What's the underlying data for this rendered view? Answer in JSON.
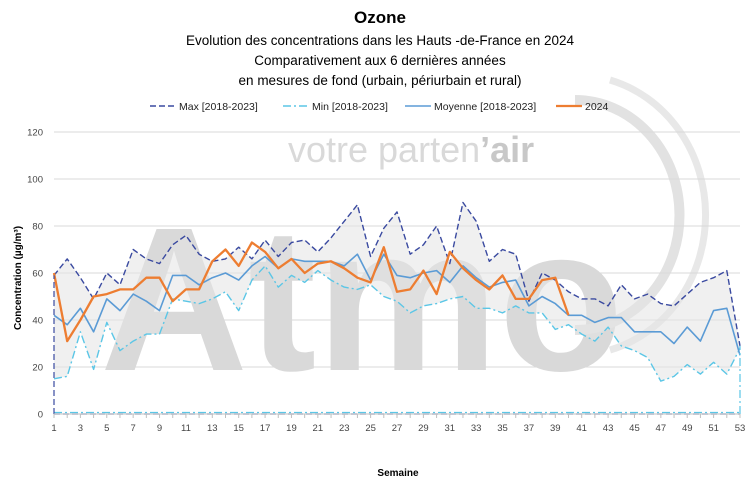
{
  "chart_data": {
    "type": "line",
    "title": "Ozone",
    "subtitle_lines": [
      "Evolution des concentrations dans les Hauts -de-France en 2024",
      "Comparativement aux 6 dernières années",
      "en mesures de fond (urbain, périurbain et rural)"
    ],
    "xlabel": "Semaine",
    "ylabel": "Concentration (µg/m³)",
    "ylim": [
      0,
      120
    ],
    "yticks": [
      0,
      20,
      40,
      60,
      80,
      100,
      120
    ],
    "xlim": [
      1,
      53
    ],
    "xticks": [
      1,
      3,
      5,
      7,
      9,
      11,
      13,
      15,
      17,
      19,
      21,
      23,
      25,
      27,
      29,
      31,
      33,
      35,
      37,
      39,
      41,
      43,
      45,
      47,
      49,
      51,
      53
    ],
    "legend_position": "top",
    "grid": "horizontal",
    "watermark": {
      "logo": "Atmo",
      "tagline_1": "votre parten",
      "tagline_2": "’air"
    },
    "series": [
      {
        "name": "Max [2018-2023]",
        "style": "dashed",
        "color": "#3a4aa0",
        "x": [
          1,
          2,
          3,
          4,
          5,
          6,
          7,
          8,
          9,
          10,
          11,
          12,
          13,
          14,
          15,
          16,
          17,
          18,
          19,
          20,
          21,
          22,
          23,
          24,
          25,
          26,
          27,
          28,
          29,
          30,
          31,
          32,
          33,
          34,
          35,
          36,
          37,
          38,
          39,
          40,
          41,
          42,
          43,
          44,
          45,
          46,
          47,
          48,
          49,
          50,
          51,
          52,
          53
        ],
        "values": [
          59,
          66,
          58,
          49,
          60,
          55,
          70,
          66,
          64,
          72,
          76,
          68,
          65,
          66,
          71,
          66,
          74,
          67,
          73,
          74,
          69,
          75,
          82,
          89,
          67,
          79,
          86,
          68,
          72,
          80,
          64,
          90,
          82,
          65,
          70,
          68,
          48,
          60,
          57,
          52,
          49,
          49,
          46,
          55,
          49,
          51,
          47,
          46,
          51,
          56,
          58,
          61,
          29
        ]
      },
      {
        "name": "Min [2018-2023]",
        "style": "dash-dot",
        "color": "#5bc6e6",
        "x": [
          1,
          2,
          3,
          4,
          5,
          6,
          7,
          8,
          9,
          10,
          11,
          12,
          13,
          14,
          15,
          16,
          17,
          18,
          19,
          20,
          21,
          22,
          23,
          24,
          25,
          26,
          27,
          28,
          29,
          30,
          31,
          32,
          33,
          34,
          35,
          36,
          37,
          38,
          39,
          40,
          41,
          42,
          43,
          44,
          45,
          46,
          47,
          48,
          49,
          50,
          51,
          52,
          53
        ],
        "values": [
          15,
          16,
          35,
          19,
          39,
          27,
          31,
          34,
          34,
          49,
          48,
          47,
          49,
          52,
          44,
          57,
          63,
          54,
          59,
          56,
          61,
          57,
          54,
          53,
          55,
          50,
          48,
          43,
          46,
          47,
          49,
          50,
          45,
          45,
          43,
          46,
          43,
          43,
          36,
          38,
          34,
          31,
          37,
          29,
          27,
          24,
          14,
          16,
          21,
          17,
          22,
          17,
          28
        ]
      },
      {
        "name": "Moyenne [2018-2023]",
        "style": "solid",
        "color": "#5b9bd5",
        "x": [
          1,
          2,
          3,
          4,
          5,
          6,
          7,
          8,
          9,
          10,
          11,
          12,
          13,
          14,
          15,
          16,
          17,
          18,
          19,
          20,
          21,
          22,
          23,
          24,
          25,
          26,
          27,
          28,
          29,
          30,
          31,
          32,
          33,
          34,
          35,
          36,
          37,
          38,
          39,
          40,
          41,
          42,
          43,
          44,
          45,
          46,
          47,
          48,
          49,
          50,
          51,
          52,
          53
        ],
        "values": [
          42,
          38,
          45,
          35,
          49,
          44,
          51,
          48,
          44,
          59,
          59,
          55,
          58,
          60,
          57,
          63,
          67,
          62,
          66,
          65,
          65,
          65,
          63,
          68,
          57,
          68,
          59,
          58,
          60,
          61,
          56,
          63,
          58,
          54,
          56,
          57,
          46,
          50,
          47,
          42,
          42,
          39,
          41,
          41,
          35,
          35,
          35,
          30,
          37,
          31,
          44,
          45,
          25
        ]
      },
      {
        "name": "2024",
        "style": "solid",
        "color": "#ed7d31",
        "x": [
          1,
          2,
          3,
          4,
          5,
          6,
          7,
          8,
          9,
          10,
          11,
          12,
          13,
          14,
          15,
          16,
          17,
          18,
          19,
          20,
          21,
          22,
          23,
          24,
          25,
          26,
          27,
          28,
          29,
          30,
          31,
          32,
          33,
          34,
          35,
          36,
          37,
          38,
          39,
          40
        ],
        "values": [
          60,
          31,
          40,
          50,
          51,
          53,
          53,
          58,
          58,
          48,
          53,
          53,
          65,
          70,
          63,
          73,
          69,
          62,
          66,
          60,
          64,
          65,
          62,
          58,
          56,
          71,
          52,
          53,
          61,
          51,
          69,
          62,
          57,
          53,
          59,
          49,
          49,
          57,
          58,
          42
        ]
      }
    ]
  }
}
